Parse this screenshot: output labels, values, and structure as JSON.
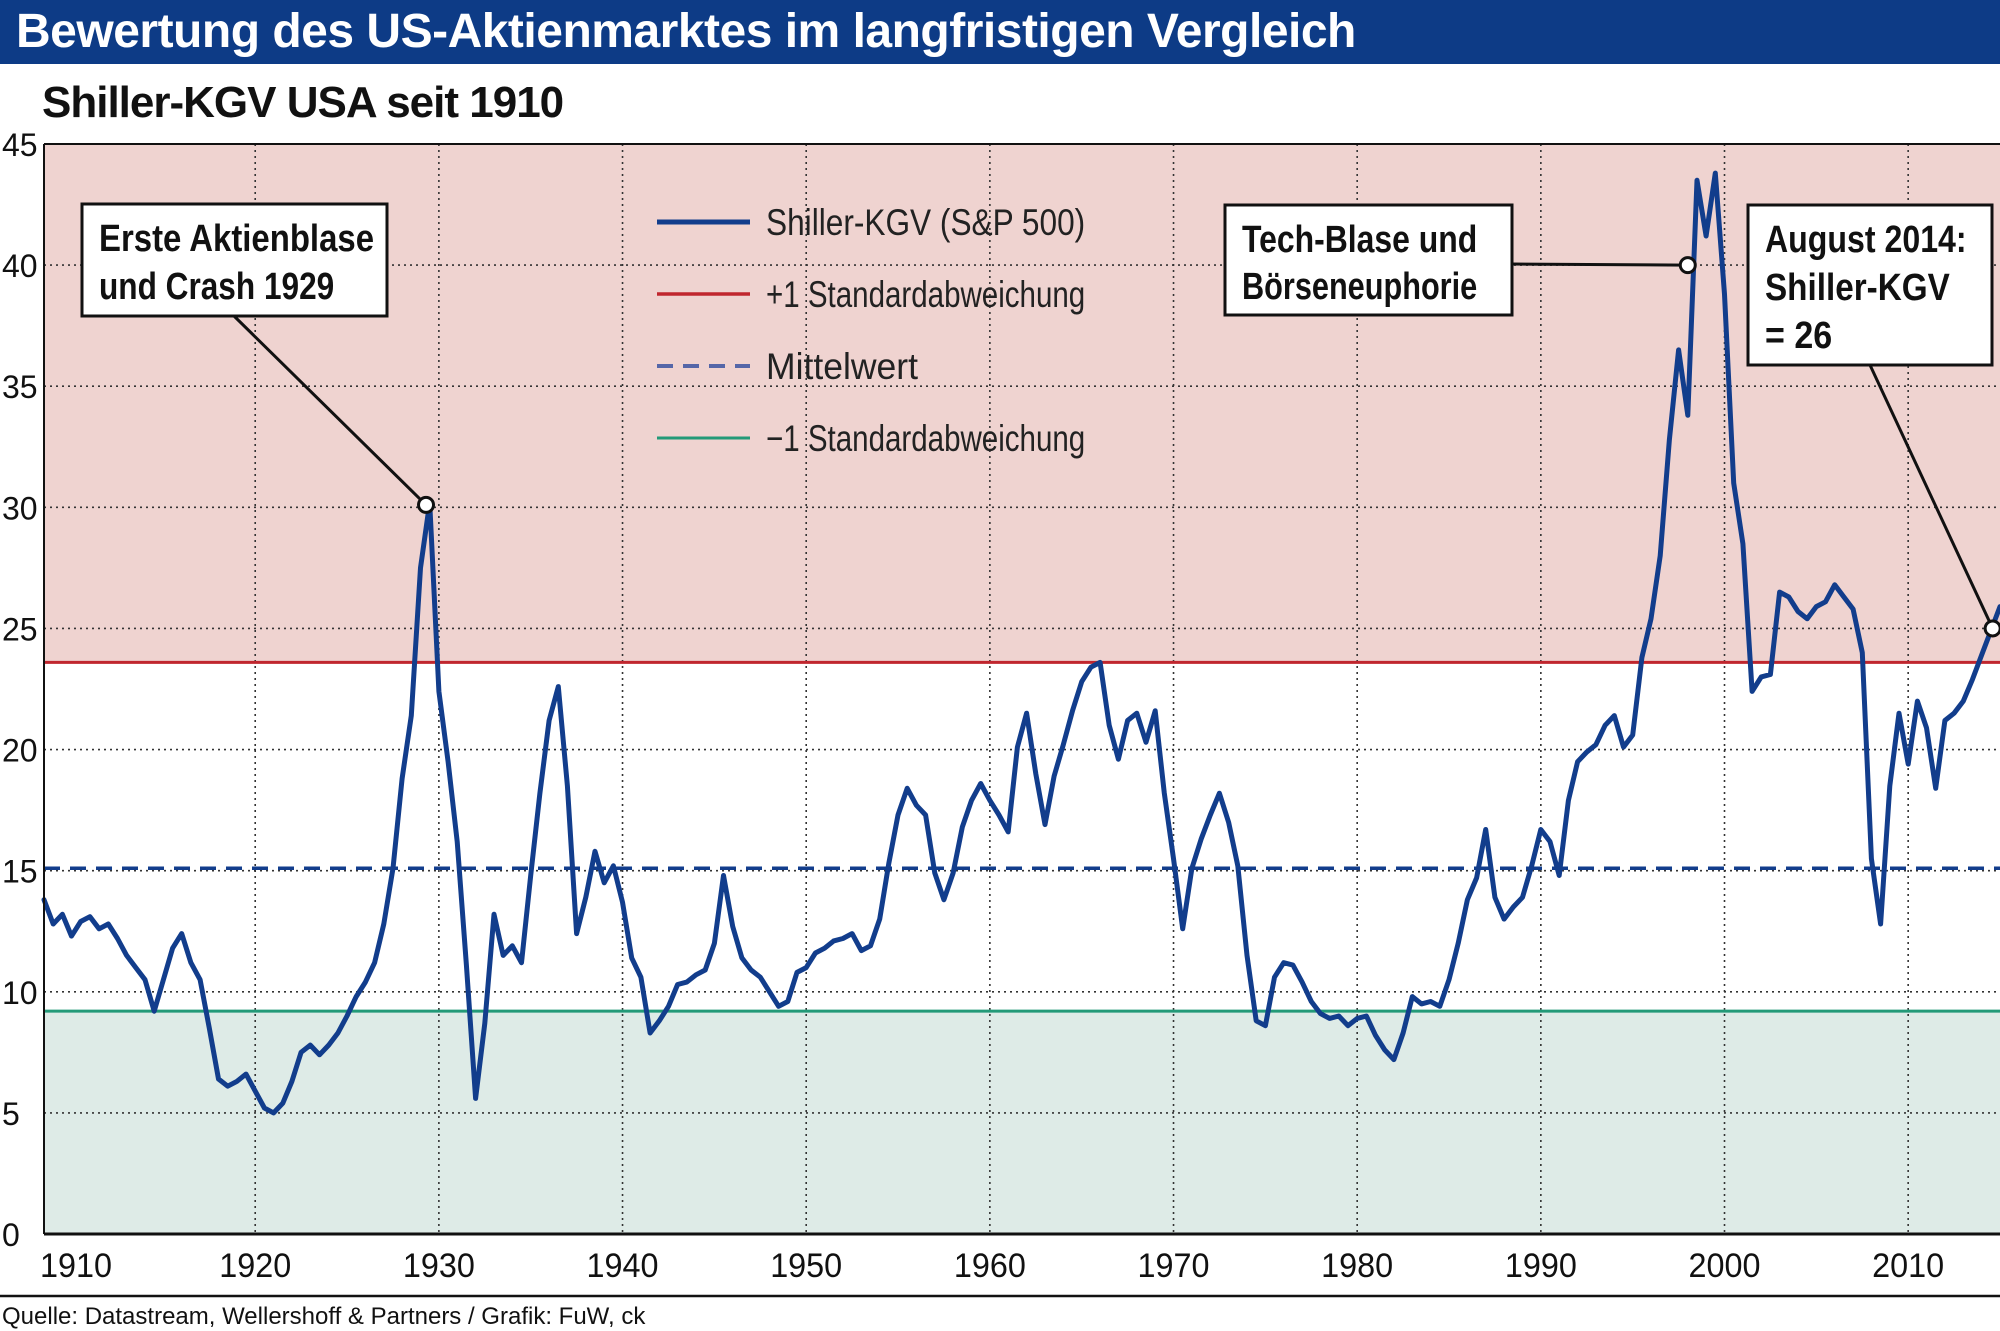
{
  "header": {
    "title": "Bewertung des US-Aktienmarktes im langfristigen Vergleich",
    "bar_color": "#0d3b86"
  },
  "subtitle": "Shiller-KGV USA seit 1910",
  "source": "Quelle: Datastream, Wellershoff & Partners / Grafik: FuW, ck",
  "chart_data": {
    "type": "line",
    "title": "Shiller-KGV USA seit 1910",
    "xlim": [
      1908.5,
      2015
    ],
    "ylim": [
      0,
      45
    ],
    "x_ticks": [
      1910,
      1920,
      1930,
      1940,
      1950,
      1960,
      1970,
      1980,
      1990,
      2000,
      2010
    ],
    "y_ticks": [
      0,
      5,
      10,
      15,
      20,
      25,
      30,
      35,
      40,
      45
    ],
    "grid": true,
    "legend_position": "top-center",
    "reference_lines": {
      "plus_1sd": 23.6,
      "mean": 15.1,
      "minus_1sd": 9.2
    },
    "colors": {
      "series": "#123d8c",
      "plus_1sd": "#c0262e",
      "mean": "#123d8c",
      "minus_1sd": "#239a78",
      "upper_zone": "#efd3d0",
      "lower_zone": "#deebe7"
    },
    "legend": [
      {
        "label": "Shiller-KGV (S&P 500)",
        "style": "series"
      },
      {
        "label": "+1 Standardabweichung",
        "style": "plus_1sd"
      },
      {
        "label": "Mittelwert",
        "style": "mean"
      },
      {
        "label": "−1 Standardabweichung",
        "style": "minus_1sd"
      }
    ],
    "series": [
      {
        "name": "Shiller-KGV (S&P 500)",
        "x": [
          1908.5,
          1909,
          1909.5,
          1910,
          1910.5,
          1911,
          1911.5,
          1912,
          1912.5,
          1913,
          1913.5,
          1914,
          1914.5,
          1915,
          1915.5,
          1916,
          1916.5,
          1917,
          1917.5,
          1918,
          1918.5,
          1919,
          1919.5,
          1920,
          1920.5,
          1921,
          1921.5,
          1922,
          1922.5,
          1923,
          1923.5,
          1924,
          1924.5,
          1925,
          1925.5,
          1926,
          1926.5,
          1927,
          1927.5,
          1928,
          1928.5,
          1929,
          1929.5,
          1930,
          1930.5,
          1931,
          1931.5,
          1932,
          1932.5,
          1933,
          1933.5,
          1934,
          1934.5,
          1935,
          1935.5,
          1936,
          1936.5,
          1937,
          1937.5,
          1938,
          1938.5,
          1939,
          1939.5,
          1940,
          1940.5,
          1941,
          1941.5,
          1942,
          1942.5,
          1943,
          1943.5,
          1944,
          1944.5,
          1945,
          1945.5,
          1946,
          1946.5,
          1947,
          1947.5,
          1948,
          1948.5,
          1949,
          1949.5,
          1950,
          1950.5,
          1951,
          1951.5,
          1952,
          1952.5,
          1953,
          1953.5,
          1954,
          1954.5,
          1955,
          1955.5,
          1956,
          1956.5,
          1957,
          1957.5,
          1958,
          1958.5,
          1959,
          1959.5,
          1960,
          1960.5,
          1961,
          1961.5,
          1962,
          1962.5,
          1963,
          1963.5,
          1964,
          1964.5,
          1965,
          1965.5,
          1966,
          1966.5,
          1967,
          1967.5,
          1968,
          1968.5,
          1969,
          1969.5,
          1970,
          1970.5,
          1971,
          1971.5,
          1972,
          1972.5,
          1973,
          1973.5,
          1974,
          1974.5,
          1975,
          1975.5,
          1976,
          1976.5,
          1977,
          1977.5,
          1978,
          1978.5,
          1979,
          1979.5,
          1980,
          1980.5,
          1981,
          1981.5,
          1982,
          1982.5,
          1983,
          1983.5,
          1984,
          1984.5,
          1985,
          1985.5,
          1986,
          1986.5,
          1987,
          1987.5,
          1988,
          1988.5,
          1989,
          1989.5,
          1990,
          1990.5,
          1991,
          1991.5,
          1992,
          1992.5,
          1993,
          1993.5,
          1994,
          1994.5,
          1995,
          1995.5,
          1996,
          1996.5,
          1997,
          1997.5,
          1998,
          1998.5,
          1999,
          1999.5,
          2000,
          2000.5,
          2001,
          2001.5,
          2002,
          2002.5,
          2003,
          2003.5,
          2004,
          2004.5,
          2005,
          2005.5,
          2006,
          2006.5,
          2007,
          2007.5,
          2008,
          2008.5,
          2009,
          2009.5,
          2010,
          2010.5,
          2011,
          2011.5,
          2012,
          2012.5,
          2013,
          2013.5,
          2014,
          2014.5,
          2015
        ],
        "values": [
          13.8,
          12.8,
          13.2,
          12.3,
          12.9,
          13.1,
          12.6,
          12.8,
          12.2,
          11.5,
          11.0,
          10.5,
          9.2,
          10.5,
          11.8,
          12.4,
          11.2,
          10.5,
          8.5,
          6.4,
          6.1,
          6.3,
          6.6,
          5.9,
          5.2,
          5.0,
          5.4,
          6.3,
          7.5,
          7.8,
          7.4,
          7.8,
          8.3,
          9.0,
          9.8,
          10.4,
          11.2,
          12.8,
          15.1,
          18.8,
          21.4,
          27.5,
          30.2,
          22.4,
          19.5,
          16.2,
          11.1,
          5.6,
          8.7,
          13.2,
          11.5,
          11.9,
          11.2,
          14.8,
          18.2,
          21.2,
          22.6,
          18.5,
          12.4,
          13.9,
          15.8,
          14.5,
          15.2,
          13.7,
          11.4,
          10.6,
          8.3,
          8.8,
          9.4,
          10.3,
          10.4,
          10.7,
          10.9,
          12.0,
          14.8,
          12.7,
          11.4,
          10.9,
          10.6,
          10.0,
          9.4,
          9.6,
          10.8,
          11.0,
          11.6,
          11.8,
          12.1,
          12.2,
          12.4,
          11.7,
          11.9,
          13.0,
          15.3,
          17.3,
          18.4,
          17.7,
          17.3,
          14.9,
          13.8,
          14.9,
          16.8,
          17.9,
          18.6,
          17.9,
          17.3,
          16.6,
          20.1,
          21.5,
          19.0,
          16.9,
          18.9,
          20.2,
          21.6,
          22.8,
          23.4,
          23.6,
          21.0,
          19.6,
          21.2,
          21.5,
          20.3,
          21.6,
          18.2,
          15.5,
          12.6,
          15.1,
          16.3,
          17.3,
          18.2,
          17.0,
          15.2,
          11.5,
          8.8,
          8.6,
          10.6,
          11.2,
          11.1,
          10.4,
          9.6,
          9.1,
          8.9,
          9.0,
          8.6,
          8.9,
          9.0,
          8.2,
          7.6,
          7.2,
          8.3,
          9.8,
          9.5,
          9.6,
          9.4,
          10.5,
          12.0,
          13.8,
          14.7,
          16.7,
          13.9,
          13.0,
          13.5,
          13.9,
          15.2,
          16.7,
          16.2,
          14.8,
          17.9,
          19.5,
          19.9,
          20.2,
          21.0,
          21.4,
          20.1,
          20.6,
          23.8,
          25.4,
          28.0,
          32.8,
          36.5,
          33.8,
          43.5,
          41.2,
          43.8,
          38.8,
          31.0,
          28.5,
          22.4,
          23.0,
          23.1,
          26.5,
          26.3,
          25.7,
          25.4,
          25.9,
          26.1,
          26.8,
          26.3,
          25.8,
          24.0,
          15.5,
          12.8,
          18.5,
          21.5,
          19.4,
          22.0,
          20.9,
          18.4,
          21.2,
          21.5,
          22.0,
          22.9,
          23.9,
          24.9,
          25.9
        ]
      }
    ],
    "annotations": [
      {
        "lines": [
          "Erste Aktienblase",
          "und Crash 1929"
        ],
        "point": [
          1929.3,
          30.1
        ]
      },
      {
        "lines": [
          "Tech-Blase und",
          "Börseneuphorie"
        ],
        "point": [
          1998.0,
          40.0
        ]
      },
      {
        "lines": [
          "August 2014:",
          "Shiller-KGV",
          "= 26"
        ],
        "point": [
          2014.6,
          25.0
        ]
      }
    ]
  }
}
